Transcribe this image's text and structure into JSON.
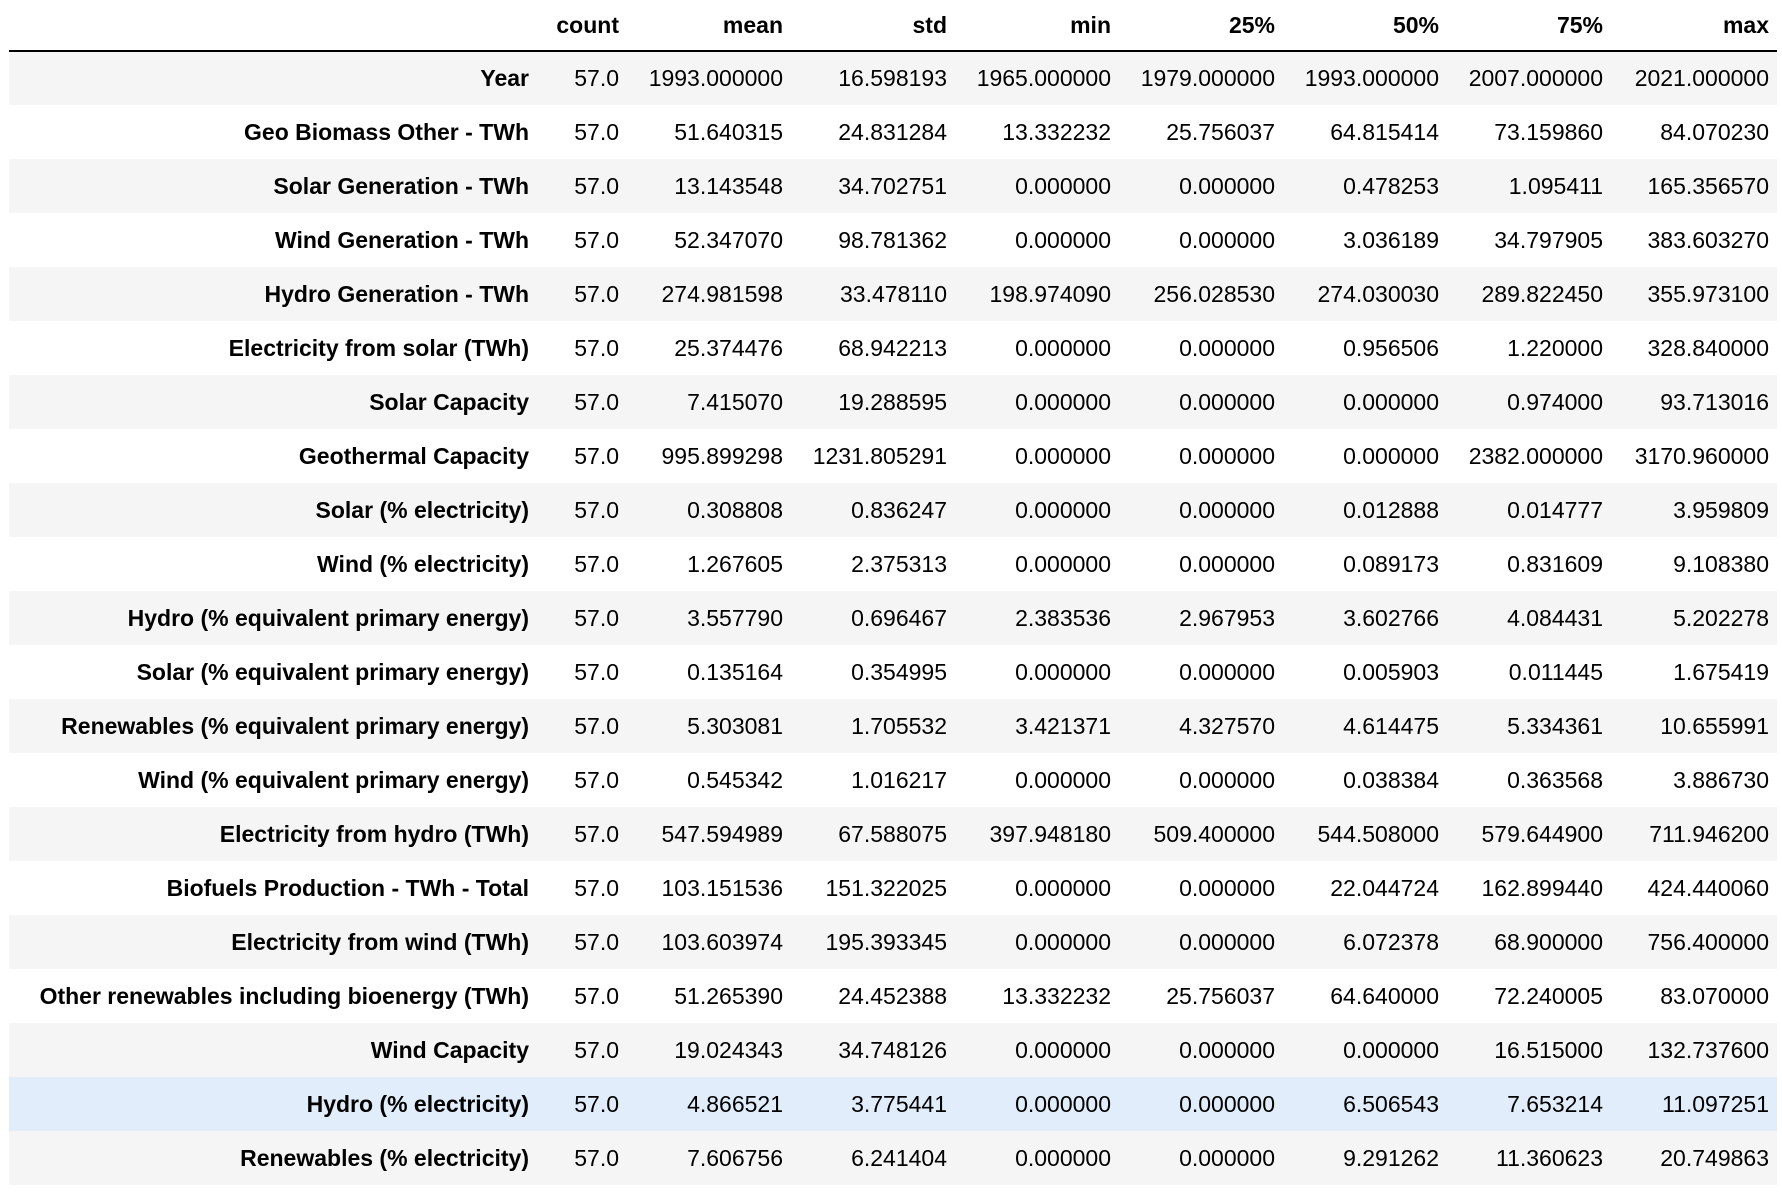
{
  "table": {
    "index_header": "",
    "columns": [
      "count",
      "mean",
      "std",
      "min",
      "25%",
      "50%",
      "75%",
      "max"
    ],
    "hover_row": 19,
    "rows": [
      {
        "label": "Year",
        "values": [
          "57.0",
          "1993.000000",
          "16.598193",
          "1965.000000",
          "1979.000000",
          "1993.000000",
          "2007.000000",
          "2021.000000"
        ]
      },
      {
        "label": "Geo Biomass Other - TWh",
        "values": [
          "57.0",
          "51.640315",
          "24.831284",
          "13.332232",
          "25.756037",
          "64.815414",
          "73.159860",
          "84.070230"
        ]
      },
      {
        "label": "Solar Generation - TWh",
        "values": [
          "57.0",
          "13.143548",
          "34.702751",
          "0.000000",
          "0.000000",
          "0.478253",
          "1.095411",
          "165.356570"
        ]
      },
      {
        "label": "Wind Generation - TWh",
        "values": [
          "57.0",
          "52.347070",
          "98.781362",
          "0.000000",
          "0.000000",
          "3.036189",
          "34.797905",
          "383.603270"
        ]
      },
      {
        "label": "Hydro Generation - TWh",
        "values": [
          "57.0",
          "274.981598",
          "33.478110",
          "198.974090",
          "256.028530",
          "274.030030",
          "289.822450",
          "355.973100"
        ]
      },
      {
        "label": "Electricity from solar (TWh)",
        "values": [
          "57.0",
          "25.374476",
          "68.942213",
          "0.000000",
          "0.000000",
          "0.956506",
          "1.220000",
          "328.840000"
        ]
      },
      {
        "label": "Solar Capacity",
        "values": [
          "57.0",
          "7.415070",
          "19.288595",
          "0.000000",
          "0.000000",
          "0.000000",
          "0.974000",
          "93.713016"
        ]
      },
      {
        "label": "Geothermal Capacity",
        "values": [
          "57.0",
          "995.899298",
          "1231.805291",
          "0.000000",
          "0.000000",
          "0.000000",
          "2382.000000",
          "3170.960000"
        ]
      },
      {
        "label": "Solar (% electricity)",
        "values": [
          "57.0",
          "0.308808",
          "0.836247",
          "0.000000",
          "0.000000",
          "0.012888",
          "0.014777",
          "3.959809"
        ]
      },
      {
        "label": "Wind (% electricity)",
        "values": [
          "57.0",
          "1.267605",
          "2.375313",
          "0.000000",
          "0.000000",
          "0.089173",
          "0.831609",
          "9.108380"
        ]
      },
      {
        "label": "Hydro (% equivalent primary energy)",
        "values": [
          "57.0",
          "3.557790",
          "0.696467",
          "2.383536",
          "2.967953",
          "3.602766",
          "4.084431",
          "5.202278"
        ]
      },
      {
        "label": "Solar (% equivalent primary energy)",
        "values": [
          "57.0",
          "0.135164",
          "0.354995",
          "0.000000",
          "0.000000",
          "0.005903",
          "0.011445",
          "1.675419"
        ]
      },
      {
        "label": "Renewables (% equivalent primary energy)",
        "values": [
          "57.0",
          "5.303081",
          "1.705532",
          "3.421371",
          "4.327570",
          "4.614475",
          "5.334361",
          "10.655991"
        ]
      },
      {
        "label": "Wind (% equivalent primary energy)",
        "values": [
          "57.0",
          "0.545342",
          "1.016217",
          "0.000000",
          "0.000000",
          "0.038384",
          "0.363568",
          "3.886730"
        ]
      },
      {
        "label": "Electricity from hydro (TWh)",
        "values": [
          "57.0",
          "547.594989",
          "67.588075",
          "397.948180",
          "509.400000",
          "544.508000",
          "579.644900",
          "711.946200"
        ]
      },
      {
        "label": "Biofuels Production - TWh - Total",
        "values": [
          "57.0",
          "103.151536",
          "151.322025",
          "0.000000",
          "0.000000",
          "22.044724",
          "162.899440",
          "424.440060"
        ]
      },
      {
        "label": "Electricity from wind (TWh)",
        "values": [
          "57.0",
          "103.603974",
          "195.393345",
          "0.000000",
          "0.000000",
          "6.072378",
          "68.900000",
          "756.400000"
        ]
      },
      {
        "label": "Other renewables including bioenergy (TWh)",
        "values": [
          "57.0",
          "51.265390",
          "24.452388",
          "13.332232",
          "25.756037",
          "64.640000",
          "72.240005",
          "83.070000"
        ]
      },
      {
        "label": "Wind Capacity",
        "values": [
          "57.0",
          "19.024343",
          "34.748126",
          "0.000000",
          "0.000000",
          "0.000000",
          "16.515000",
          "132.737600"
        ]
      },
      {
        "label": "Hydro (% electricity)",
        "values": [
          "57.0",
          "4.866521",
          "3.775441",
          "0.000000",
          "0.000000",
          "6.506543",
          "7.653214",
          "11.097251"
        ]
      },
      {
        "label": "Renewables (% electricity)",
        "values": [
          "57.0",
          "7.606756",
          "6.241404",
          "0.000000",
          "0.000000",
          "9.291262",
          "11.360623",
          "20.749863"
        ]
      }
    ]
  },
  "colors": {
    "stripe": "#f5f5f5",
    "hover": "#e1edfb",
    "header_rule": "#000000"
  }
}
